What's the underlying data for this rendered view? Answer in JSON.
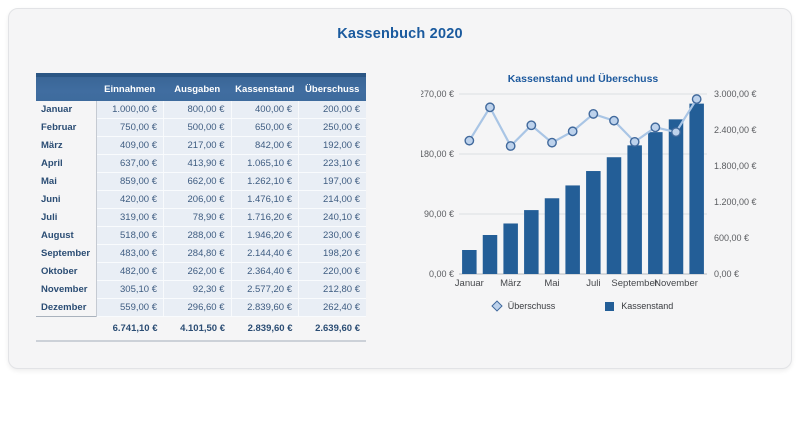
{
  "page": {
    "title": "Kassenbuch 2020"
  },
  "table": {
    "columns": [
      "",
      "Einnahmen",
      "Ausgaben",
      "Kassenstand",
      "Überschuss"
    ],
    "rows": [
      {
        "month": "Januar",
        "values": [
          "1.000,00 €",
          "800,00 €",
          "400,00 €",
          "200,00 €"
        ]
      },
      {
        "month": "Februar",
        "values": [
          "750,00 €",
          "500,00 €",
          "650,00 €",
          "250,00 €"
        ]
      },
      {
        "month": "März",
        "values": [
          "409,00 €",
          "217,00 €",
          "842,00 €",
          "192,00 €"
        ]
      },
      {
        "month": "April",
        "values": [
          "637,00 €",
          "413,90 €",
          "1.065,10 €",
          "223,10 €"
        ]
      },
      {
        "month": "Mai",
        "values": [
          "859,00 €",
          "662,00 €",
          "1.262,10 €",
          "197,00 €"
        ]
      },
      {
        "month": "Juni",
        "values": [
          "420,00 €",
          "206,00 €",
          "1.476,10 €",
          "214,00 €"
        ]
      },
      {
        "month": "Juli",
        "values": [
          "319,00 €",
          "78,90 €",
          "1.716,20 €",
          "240,10 €"
        ]
      },
      {
        "month": "August",
        "values": [
          "518,00 €",
          "288,00 €",
          "1.946,20 €",
          "230,00 €"
        ]
      },
      {
        "month": "September",
        "values": [
          "483,00 €",
          "284,80 €",
          "2.144,40 €",
          "198,20 €"
        ]
      },
      {
        "month": "Oktober",
        "values": [
          "482,00 €",
          "262,00 €",
          "2.364,40 €",
          "220,00 €"
        ]
      },
      {
        "month": "November",
        "values": [
          "305,10 €",
          "92,30 €",
          "2.577,20 €",
          "212,80 €"
        ]
      },
      {
        "month": "Dezember",
        "values": [
          "559,00 €",
          "296,60 €",
          "2.839,60 €",
          "262,40 €"
        ]
      }
    ],
    "totals": [
      "6.741,10 €",
      "4.101,50 €",
      "2.839,60 €",
      "2.639,60 €"
    ]
  },
  "chart_data": {
    "type": "combo-bar-line",
    "title": "Kassenstand und Überschuss",
    "categories": [
      "Januar",
      "Februar",
      "März",
      "April",
      "Mai",
      "Juni",
      "Juli",
      "August",
      "September",
      "Oktober",
      "November",
      "Dezember"
    ],
    "x_ticks": [
      {
        "i": 0,
        "label": "Januar"
      },
      {
        "i": 2,
        "label": "März"
      },
      {
        "i": 4,
        "label": "Mai"
      },
      {
        "i": 6,
        "label": "Juli"
      },
      {
        "i": 8,
        "label": "September"
      },
      {
        "i": 10,
        "label": "November"
      }
    ],
    "series": [
      {
        "name": "Überschuss",
        "type": "line",
        "axis": "left",
        "values": [
          200,
          250,
          192,
          223.1,
          197,
          214,
          240.1,
          230,
          198.2,
          220,
          212.8,
          262.4
        ],
        "color": "#a9c5e5",
        "marker_fill": "#bdd2ec",
        "marker_stroke": "#41699c"
      },
      {
        "name": "Kassenstand",
        "type": "bar",
        "axis": "right",
        "values": [
          400,
          650,
          842,
          1065.1,
          1262.1,
          1476.1,
          1716.2,
          1946.2,
          2144.4,
          2364.4,
          2577.2,
          2839.6
        ],
        "color": "#235e97"
      }
    ],
    "left_axis": {
      "min": 0,
      "max": 270,
      "step": 90,
      "tick_labels": [
        "0,00 €",
        "90,00 €",
        "180,00 €",
        "270,00 €"
      ]
    },
    "right_axis": {
      "min": 0,
      "max": 3000,
      "step": 600,
      "tick_labels": [
        "0,00 €",
        "600,00 €",
        "1.200,00 €",
        "1.800,00 €",
        "2.400,00 €",
        "3.000,00 €"
      ]
    },
    "grid": true,
    "legend_position": "bottom"
  }
}
